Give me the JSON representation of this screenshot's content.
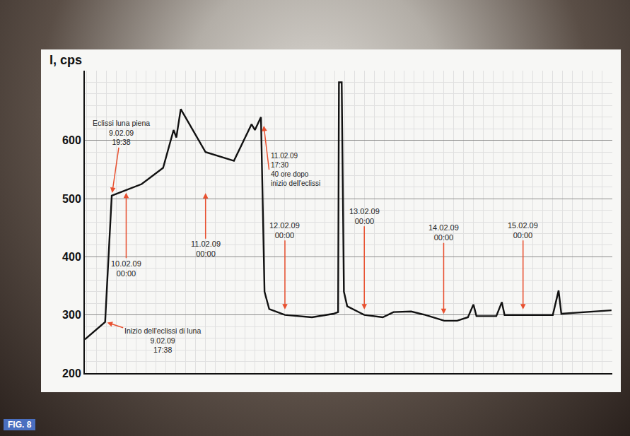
{
  "chart_data": {
    "type": "line",
    "y_label": "I, cps",
    "color": "#111111",
    "x": [
      "2009-02-09 11:30",
      "2009-02-09 17:38",
      "2009-02-09 19:38",
      "2009-02-10 04:40",
      "2009-02-10 11:10",
      "2009-02-10 14:20",
      "2009-02-10 15:10",
      "2009-02-10 16:30",
      "2009-02-11 00:00",
      "2009-02-11 08:35",
      "2009-02-11 13:55",
      "2009-02-11 14:55",
      "2009-02-11 16:45",
      "2009-02-11 17:50",
      "2009-02-11 19:15",
      "2009-02-12 00:00",
      "2009-02-12 08:10",
      "2009-02-12 14:40",
      "2009-02-12 16:05",
      "2009-02-12 16:20",
      "2009-02-12 17:10",
      "2009-02-12 17:50",
      "2009-02-12 18:50",
      "2009-02-13 00:00",
      "2009-02-13 05:35",
      "2009-02-13 08:50",
      "2009-02-13 14:10",
      "2009-02-13 18:25",
      "2009-02-14 00:10",
      "2009-02-14 04:05",
      "2009-02-14 07:20",
      "2009-02-14 09:00",
      "2009-02-14 09:55",
      "2009-02-14 15:55",
      "2009-02-14 17:35",
      "2009-02-14 18:25",
      "2009-02-15 00:00",
      "2009-02-15 09:00",
      "2009-02-15 10:45",
      "2009-02-15 11:35",
      "2009-02-16 02:45"
    ],
    "values": [
      258,
      288,
      505,
      525,
      553,
      618,
      605,
      654,
      580,
      565,
      628,
      618,
      640,
      340,
      310,
      300,
      296,
      302,
      305,
      700,
      700,
      340,
      315,
      300,
      296,
      305,
      306,
      300,
      290,
      290,
      296,
      318,
      298,
      298,
      322,
      300,
      300,
      300,
      342,
      302,
      308
    ],
    "xlim": [
      "2009-02-09 11:30",
      "2009-02-16 03:00"
    ],
    "ylim": [
      200,
      720
    ],
    "yticks": [
      200,
      300,
      400,
      500,
      600
    ],
    "grid": true,
    "tick_labels": "y",
    "annotations": [
      {
        "lines": [
          "Eclissi luna piena",
          "9.02.09",
          "19:38"
        ],
        "x": "2009-02-09 19:38",
        "y": 505
      },
      {
        "lines": [
          "Inizio dell'eclissi di luna",
          "9.02.09",
          "17:38"
        ],
        "x": "2009-02-09 17:38",
        "y": 288
      },
      {
        "lines": [
          "10.02.09",
          "00:00"
        ],
        "x": "2009-02-10 00:00",
        "y": 515
      },
      {
        "lines": [
          "11.02.09",
          "00:00"
        ],
        "x": "2009-02-11 00:00",
        "y": 580
      },
      {
        "lines": [
          "11.02.09",
          "17:30",
          "40 ore dopo",
          "inizio dell'eclissi"
        ],
        "x": "2009-02-11 17:30",
        "y": 630
      },
      {
        "lines": [
          "12.02.09",
          "00:00"
        ],
        "x": "2009-02-12 00:00",
        "y": 300
      },
      {
        "lines": [
          "13.02.09",
          "00:00"
        ],
        "x": "2009-02-13 00:00",
        "y": 300
      },
      {
        "lines": [
          "14.02.09",
          "00:00"
        ],
        "x": "2009-02-14 00:00",
        "y": 292
      },
      {
        "lines": [
          "15.02.09",
          "00:00"
        ],
        "x": "2009-02-15 00:00",
        "y": 300
      }
    ],
    "fig_label": "FIG. 8"
  }
}
